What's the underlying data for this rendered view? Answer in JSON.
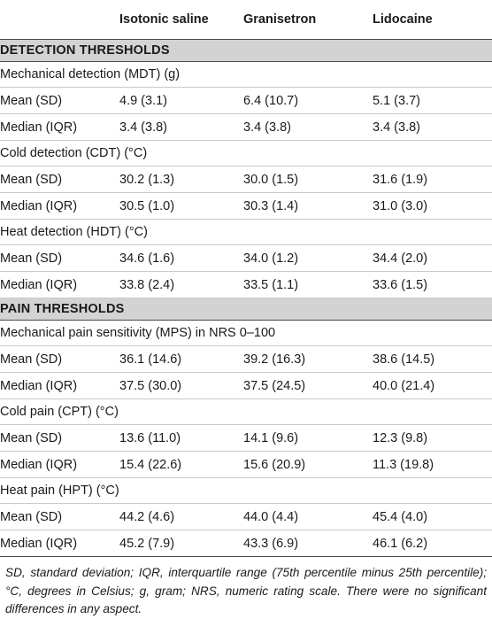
{
  "headers": {
    "a": "Isotonic saline",
    "b": "Granisetron",
    "c": "Lidocaine"
  },
  "sections": [
    {
      "title": "DETECTION THRESHOLDS",
      "groups": [
        {
          "label": "Mechanical detection (MDT) (g)",
          "rows": [
            {
              "label": "Mean (SD)",
              "a": "4.9 (3.1)",
              "b": "6.4 (10.7)",
              "c": "5.1 (3.7)"
            },
            {
              "label": "Median (IQR)",
              "a": "3.4 (3.8)",
              "b": "3.4 (3.8)",
              "c": "3.4 (3.8)"
            }
          ]
        },
        {
          "label": "Cold detection (CDT) (°C)",
          "rows": [
            {
              "label": "Mean (SD)",
              "a": "30.2 (1.3)",
              "b": "30.0 (1.5)",
              "c": "31.6 (1.9)"
            },
            {
              "label": "Median (IQR)",
              "a": "30.5 (1.0)",
              "b": "30.3 (1.4)",
              "c": "31.0 (3.0)"
            }
          ]
        },
        {
          "label": "Heat detection (HDT) (°C)",
          "rows": [
            {
              "label": "Mean (SD)",
              "a": "34.6 (1.6)",
              "b": "34.0 (1.2)",
              "c": "34.4 (2.0)"
            },
            {
              "label": "Median (IQR)",
              "a": "33.8 (2.4)",
              "b": "33.5 (1.1)",
              "c": "33.6 (1.5)"
            }
          ]
        }
      ]
    },
    {
      "title": "PAIN THRESHOLDS",
      "groups": [
        {
          "label": "Mechanical pain sensitivity (MPS) in NRS 0–100",
          "rows": [
            {
              "label": "Mean (SD)",
              "a": "36.1 (14.6)",
              "b": "39.2 (16.3)",
              "c": "38.6 (14.5)"
            },
            {
              "label": "Median (IQR)",
              "a": "37.5 (30.0)",
              "b": "37.5 (24.5)",
              "c": "40.0 (21.4)"
            }
          ]
        },
        {
          "label": "Cold pain (CPT) (°C)",
          "rows": [
            {
              "label": "Mean (SD)",
              "a": "13.6 (11.0)",
              "b": "14.1 (9.6)",
              "c": "12.3 (9.8)"
            },
            {
              "label": "Median (IQR)",
              "a": "15.4 (22.6)",
              "b": "15.6 (20.9)",
              "c": "11.3 (19.8)"
            }
          ]
        },
        {
          "label": "Heat pain (HPT) (°C)",
          "rows": [
            {
              "label": "Mean (SD)",
              "a": "44.2 (4.6)",
              "b": "44.0 (4.4)",
              "c": "45.4 (4.0)"
            },
            {
              "label": "Median (IQR)",
              "a": "45.2 (7.9)",
              "b": "43.3 (6.9)",
              "c": "46.1 (6.2)"
            }
          ]
        }
      ]
    }
  ],
  "footnote": "SD, standard deviation; IQR, interquartile range (75th percentile minus 25th percentile); °C, degrees in Celsius; g, gram; NRS, numeric rating scale. There were no significant differences in any aspect."
}
